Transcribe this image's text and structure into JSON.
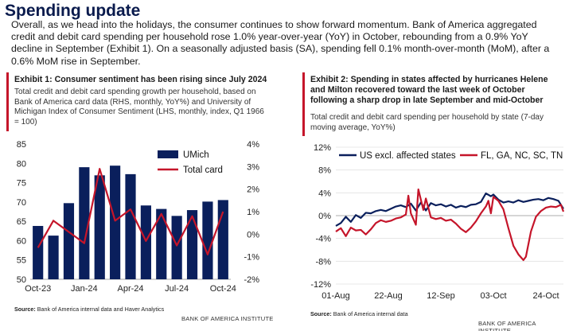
{
  "header": {
    "title": "Spending update",
    "intro": "Overall, as we head into the holidays, the consumer continues to show forward momentum. Bank of America aggregated credit and debit card spending per household rose 1.0% year-over-year (YoY) in October, rebounding from a 0.9% YoY decline in September (Exhibit 1). On a seasonally adjusted basis (SA), spending fell 0.1% month-over-month (MoM), after a 0.6% MoM rise in September."
  },
  "exhibit1": {
    "title": "Exhibit 1: Consumer sentiment has been rising since July 2024",
    "subtitle": "Total credit and debit card spending growth per household, based on Bank of America card data (RHS, monthly, YoY%) and University of Michigan Index of Consumer Sentiment (LHS, monthly, index, Q1 1966 = 100)",
    "source_label": "Source:",
    "source_text": "Bank of America internal data and Haver Analytics",
    "brand": "BANK OF AMERICA INSTITUTE"
  },
  "exhibit2": {
    "title": "Exhibit 2: Spending in states affected by hurricanes Helene and Milton recovered toward the last week of October following a sharp drop in late September and mid-October",
    "subtitle": "Total credit and debit card spending per household by state (7-day moving average, YoY%)",
    "source_label": "Source:",
    "source_text": "Bank of America internal data",
    "brand": "BANK OF AMERICA INSTITUTE"
  },
  "colors": {
    "navy": "#0a1f5c",
    "red": "#c5152a",
    "title_navy": "#0a1b4d"
  },
  "chart_data": [
    {
      "type": "bar",
      "categories": [
        "Oct-23",
        "Nov-23",
        "Dec-23",
        "Jan-24",
        "Feb-24",
        "Mar-24",
        "Apr-24",
        "May-24",
        "Jun-24",
        "Jul-24",
        "Aug-24",
        "Sep-24",
        "Oct-24"
      ],
      "x_tick_labels": [
        "Oct-23",
        "Jan-24",
        "Apr-24",
        "Jul-24",
        "Oct-24"
      ],
      "series": [
        {
          "name": "UMich",
          "type": "bar",
          "axis": "left",
          "values": [
            63.8,
            61.3,
            69.7,
            79.0,
            76.9,
            79.4,
            77.2,
            69.1,
            68.2,
            66.4,
            67.9,
            70.1,
            70.5
          ]
        },
        {
          "name": "Total card",
          "type": "line",
          "axis": "right",
          "values": [
            -0.6,
            0.6,
            0.1,
            -0.4,
            2.9,
            0.6,
            1.1,
            -0.3,
            0.9,
            -0.5,
            0.8,
            -0.9,
            1.0
          ]
        }
      ],
      "left_ylim": [
        50,
        85
      ],
      "left_ticks": [
        "50",
        "55",
        "60",
        "65",
        "70",
        "75",
        "80",
        "85"
      ],
      "right_ylim": [
        -2,
        4
      ],
      "right_ticks": [
        "-2%",
        "-1%",
        "0%",
        "1%",
        "2%",
        "3%",
        "4%"
      ],
      "legend": "top-right"
    },
    {
      "type": "line",
      "x_range": [
        "2024-08-01",
        "2024-10-31"
      ],
      "x_tick_labels": [
        "01-Aug",
        "22-Aug",
        "12-Sep",
        "03-Oct",
        "24-Oct"
      ],
      "ylim": [
        -12,
        12
      ],
      "y_ticks": [
        "-12%",
        "-8%",
        "-4%",
        "0%",
        "4%",
        "8%",
        "12%"
      ],
      "series": [
        {
          "name": "US excl. affected states",
          "points": [
            [
              "2024-08-01",
              -1.8
            ],
            [
              "2024-08-03",
              -1.3
            ],
            [
              "2024-08-05",
              -0.2
            ],
            [
              "2024-08-07",
              -1.1
            ],
            [
              "2024-08-09",
              0.1
            ],
            [
              "2024-08-11",
              -0.4
            ],
            [
              "2024-08-13",
              0.5
            ],
            [
              "2024-08-15",
              0.4
            ],
            [
              "2024-08-17",
              0.8
            ],
            [
              "2024-08-19",
              1.0
            ],
            [
              "2024-08-21",
              0.8
            ],
            [
              "2024-08-23",
              1.2
            ],
            [
              "2024-08-25",
              1.6
            ],
            [
              "2024-08-27",
              1.8
            ],
            [
              "2024-08-29",
              1.5
            ],
            [
              "2024-08-31",
              2.1
            ],
            [
              "2024-09-02",
              0.9
            ],
            [
              "2024-09-04",
              2.3
            ],
            [
              "2024-09-06",
              0.9
            ],
            [
              "2024-09-08",
              2.2
            ],
            [
              "2024-09-10",
              1.8
            ],
            [
              "2024-09-12",
              2.0
            ],
            [
              "2024-09-14",
              1.6
            ],
            [
              "2024-09-16",
              1.9
            ],
            [
              "2024-09-18",
              1.4
            ],
            [
              "2024-09-20",
              1.7
            ],
            [
              "2024-09-22",
              1.5
            ],
            [
              "2024-09-24",
              1.9
            ],
            [
              "2024-09-26",
              2.0
            ],
            [
              "2024-09-28",
              2.4
            ],
            [
              "2024-09-30",
              3.9
            ],
            [
              "2024-10-02",
              3.4
            ],
            [
              "2024-10-03",
              3.7
            ],
            [
              "2024-10-05",
              2.8
            ],
            [
              "2024-10-07",
              2.3
            ],
            [
              "2024-10-09",
              2.5
            ],
            [
              "2024-10-11",
              2.3
            ],
            [
              "2024-10-13",
              2.7
            ],
            [
              "2024-10-15",
              2.4
            ],
            [
              "2024-10-17",
              2.6
            ],
            [
              "2024-10-19",
              2.8
            ],
            [
              "2024-10-21",
              2.9
            ],
            [
              "2024-10-23",
              2.7
            ],
            [
              "2024-10-25",
              3.1
            ],
            [
              "2024-10-27",
              2.9
            ],
            [
              "2024-10-29",
              2.6
            ],
            [
              "2024-10-31",
              1.2
            ]
          ]
        },
        {
          "name": "FL, GA, NC, SC, TN",
          "points": [
            [
              "2024-08-01",
              -2.8
            ],
            [
              "2024-08-03",
              -2.2
            ],
            [
              "2024-08-05",
              -3.6
            ],
            [
              "2024-08-07",
              -2.1
            ],
            [
              "2024-08-09",
              -2.6
            ],
            [
              "2024-08-11",
              -2.5
            ],
            [
              "2024-08-13",
              -3.3
            ],
            [
              "2024-08-15",
              -2.4
            ],
            [
              "2024-08-17",
              -1.3
            ],
            [
              "2024-08-19",
              -0.8
            ],
            [
              "2024-08-21",
              -1.1
            ],
            [
              "2024-08-23",
              -0.9
            ],
            [
              "2024-08-25",
              -0.5
            ],
            [
              "2024-08-27",
              -0.3
            ],
            [
              "2024-08-29",
              0.2
            ],
            [
              "2024-08-30",
              3.5
            ],
            [
              "2024-08-31",
              0.4
            ],
            [
              "2024-09-02",
              -1.6
            ],
            [
              "2024-09-03",
              4.6
            ],
            [
              "2024-09-05",
              1.0
            ],
            [
              "2024-09-06",
              3.0
            ],
            [
              "2024-09-08",
              -0.3
            ],
            [
              "2024-09-10",
              -0.6
            ],
            [
              "2024-09-12",
              -0.4
            ],
            [
              "2024-09-14",
              -0.9
            ],
            [
              "2024-09-16",
              -0.7
            ],
            [
              "2024-09-18",
              -1.4
            ],
            [
              "2024-09-20",
              -2.3
            ],
            [
              "2024-09-22",
              -2.9
            ],
            [
              "2024-09-24",
              -2.1
            ],
            [
              "2024-09-26",
              -1.0
            ],
            [
              "2024-09-28",
              0.4
            ],
            [
              "2024-09-30",
              1.6
            ],
            [
              "2024-10-01",
              2.6
            ],
            [
              "2024-10-02",
              0.4
            ],
            [
              "2024-10-03",
              3.3
            ],
            [
              "2024-10-05",
              2.6
            ],
            [
              "2024-10-07",
              1.1
            ],
            [
              "2024-10-09",
              -2.2
            ],
            [
              "2024-10-11",
              -5.3
            ],
            [
              "2024-10-13",
              -6.8
            ],
            [
              "2024-10-15",
              -7.8
            ],
            [
              "2024-10-16",
              -7.2
            ],
            [
              "2024-10-18",
              -2.8
            ],
            [
              "2024-10-20",
              -0.2
            ],
            [
              "2024-10-22",
              0.8
            ],
            [
              "2024-10-24",
              1.4
            ],
            [
              "2024-10-26",
              1.6
            ],
            [
              "2024-10-28",
              1.5
            ],
            [
              "2024-10-30",
              1.9
            ],
            [
              "2024-10-31",
              0.7
            ]
          ]
        }
      ],
      "legend": "top"
    }
  ]
}
